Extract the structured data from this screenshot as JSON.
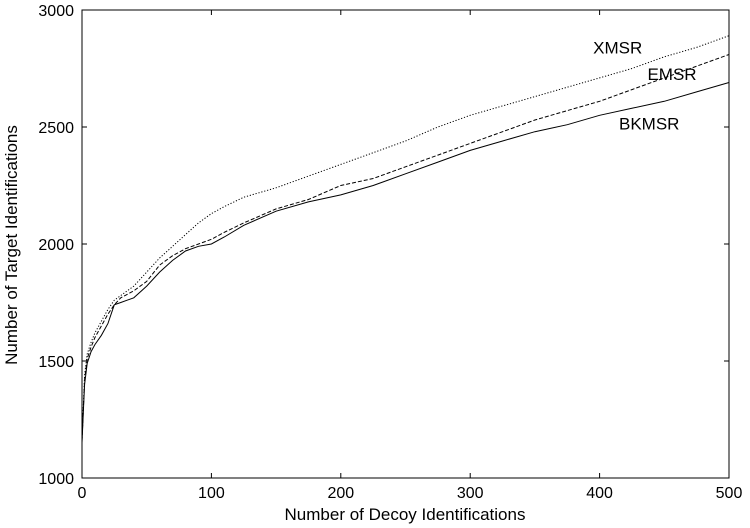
{
  "chart_data": {
    "type": "line",
    "title": "",
    "xlabel": "Number of Decoy Identifications",
    "ylabel": "Number of Target Identifications",
    "xlim": [
      0,
      500
    ],
    "ylim": [
      1000,
      3000
    ],
    "xticks": [
      0,
      100,
      200,
      300,
      400,
      500
    ],
    "yticks": [
      1000,
      1500,
      2000,
      2500,
      3000
    ],
    "grid": false,
    "legend": "inline labels near line ends",
    "series": [
      {
        "name": "XMSR",
        "style": "dotted",
        "x": [
          0,
          1,
          2,
          4,
          7,
          10,
          15,
          20,
          25,
          30,
          40,
          50,
          60,
          70,
          80,
          90,
          100,
          110,
          125,
          150,
          175,
          200,
          225,
          250,
          275,
          300,
          325,
          350,
          375,
          400,
          425,
          450,
          475,
          500
        ],
        "y": [
          1170,
          1300,
          1440,
          1530,
          1580,
          1620,
          1670,
          1720,
          1760,
          1780,
          1820,
          1880,
          1940,
          1990,
          2040,
          2090,
          2130,
          2160,
          2200,
          2240,
          2290,
          2340,
          2390,
          2440,
          2500,
          2550,
          2590,
          2630,
          2670,
          2710,
          2750,
          2800,
          2840,
          2890
        ]
      },
      {
        "name": "EMSR",
        "style": "dashed",
        "x": [
          0,
          1,
          2,
          4,
          7,
          10,
          15,
          20,
          25,
          30,
          40,
          50,
          60,
          70,
          80,
          90,
          100,
          110,
          125,
          150,
          175,
          200,
          225,
          250,
          275,
          300,
          325,
          350,
          375,
          400,
          425,
          450,
          475,
          500
        ],
        "y": [
          1160,
          1290,
          1420,
          1510,
          1560,
          1600,
          1650,
          1700,
          1740,
          1770,
          1800,
          1840,
          1910,
          1950,
          1980,
          2000,
          2020,
          2050,
          2090,
          2150,
          2190,
          2250,
          2280,
          2330,
          2380,
          2430,
          2480,
          2530,
          2570,
          2610,
          2660,
          2710,
          2760,
          2810
        ]
      },
      {
        "name": "BKMSR",
        "style": "solid",
        "x": [
          0,
          1,
          2,
          4,
          7,
          10,
          15,
          20,
          25,
          30,
          40,
          50,
          60,
          70,
          80,
          90,
          100,
          110,
          125,
          150,
          175,
          200,
          225,
          250,
          275,
          300,
          325,
          350,
          375,
          400,
          425,
          450,
          475,
          500
        ],
        "y": [
          1150,
          1280,
          1400,
          1490,
          1540,
          1570,
          1610,
          1660,
          1740,
          1750,
          1770,
          1820,
          1880,
          1930,
          1970,
          1990,
          2000,
          2030,
          2080,
          2140,
          2180,
          2210,
          2250,
          2300,
          2350,
          2400,
          2440,
          2480,
          2510,
          2550,
          2580,
          2610,
          2650,
          2690
        ]
      }
    ],
    "labels": [
      {
        "text": "XMSR",
        "x": 395,
        "y": 2815
      },
      {
        "text": "EMSR",
        "x": 437,
        "y": 2700
      },
      {
        "text": "BKMSR",
        "x": 415,
        "y": 2490
      }
    ]
  }
}
